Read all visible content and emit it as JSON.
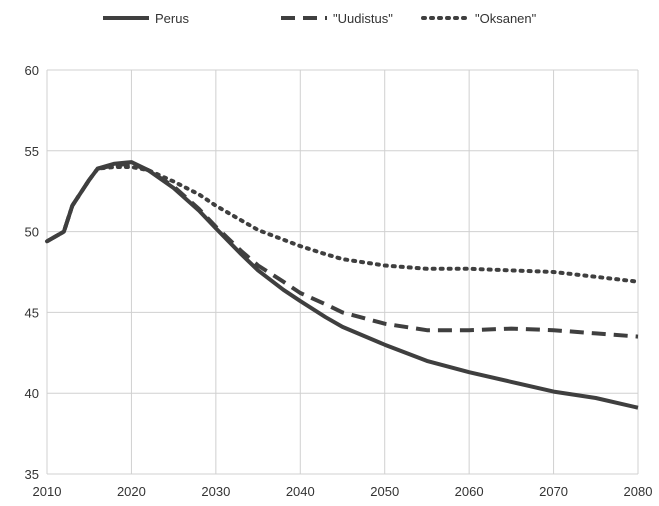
{
  "chart_data": {
    "type": "line",
    "title": "",
    "xlabel": "",
    "ylabel": "",
    "xlim": [
      2010,
      2080
    ],
    "ylim": [
      35,
      60
    ],
    "x_ticks": [
      2010,
      2020,
      2030,
      2040,
      2050,
      2060,
      2070,
      2080
    ],
    "y_ticks": [
      35,
      40,
      45,
      50,
      55,
      60
    ],
    "grid": true,
    "legend_position": "top",
    "series": [
      {
        "name": "Perus",
        "style": "solid",
        "color": "#3f3f3f",
        "points": [
          [
            2010,
            49.4
          ],
          [
            2012,
            50.0
          ],
          [
            2013,
            51.6
          ],
          [
            2015,
            53.2
          ],
          [
            2016,
            53.9
          ],
          [
            2018,
            54.2
          ],
          [
            2020,
            54.3
          ],
          [
            2022,
            53.8
          ],
          [
            2025,
            52.7
          ],
          [
            2028,
            51.3
          ],
          [
            2030,
            50.2
          ],
          [
            2033,
            48.6
          ],
          [
            2035,
            47.6
          ],
          [
            2038,
            46.4
          ],
          [
            2040,
            45.7
          ],
          [
            2043,
            44.7
          ],
          [
            2045,
            44.1
          ],
          [
            2050,
            43.0
          ],
          [
            2055,
            42.0
          ],
          [
            2060,
            41.3
          ],
          [
            2065,
            40.7
          ],
          [
            2070,
            40.1
          ],
          [
            2075,
            39.7
          ],
          [
            2080,
            39.1
          ]
        ]
      },
      {
        "name": "\"Uudistus\"",
        "style": "dashed",
        "color": "#3f3f3f",
        "points": [
          [
            2010,
            49.4
          ],
          [
            2012,
            50.0
          ],
          [
            2013,
            51.6
          ],
          [
            2015,
            53.2
          ],
          [
            2016,
            53.9
          ],
          [
            2018,
            54.1
          ],
          [
            2020,
            54.2
          ],
          [
            2022,
            53.8
          ],
          [
            2025,
            52.8
          ],
          [
            2028,
            51.4
          ],
          [
            2030,
            50.3
          ],
          [
            2033,
            48.8
          ],
          [
            2035,
            47.9
          ],
          [
            2038,
            46.9
          ],
          [
            2040,
            46.2
          ],
          [
            2043,
            45.5
          ],
          [
            2045,
            45.0
          ],
          [
            2050,
            44.3
          ],
          [
            2055,
            43.9
          ],
          [
            2060,
            43.9
          ],
          [
            2065,
            44.0
          ],
          [
            2070,
            43.9
          ],
          [
            2075,
            43.7
          ],
          [
            2080,
            43.5
          ]
        ]
      },
      {
        "name": "\"Oksanen\"",
        "style": "dotted",
        "color": "#3f3f3f",
        "points": [
          [
            2010,
            49.4
          ],
          [
            2012,
            50.0
          ],
          [
            2013,
            51.6
          ],
          [
            2015,
            53.2
          ],
          [
            2016,
            53.9
          ],
          [
            2018,
            54.0
          ],
          [
            2020,
            54.0
          ],
          [
            2022,
            53.8
          ],
          [
            2025,
            53.1
          ],
          [
            2028,
            52.3
          ],
          [
            2030,
            51.6
          ],
          [
            2033,
            50.7
          ],
          [
            2035,
            50.1
          ],
          [
            2038,
            49.5
          ],
          [
            2040,
            49.1
          ],
          [
            2043,
            48.6
          ],
          [
            2045,
            48.3
          ],
          [
            2050,
            47.9
          ],
          [
            2055,
            47.7
          ],
          [
            2060,
            47.7
          ],
          [
            2065,
            47.6
          ],
          [
            2070,
            47.5
          ],
          [
            2075,
            47.2
          ],
          [
            2080,
            46.9
          ]
        ]
      }
    ]
  }
}
